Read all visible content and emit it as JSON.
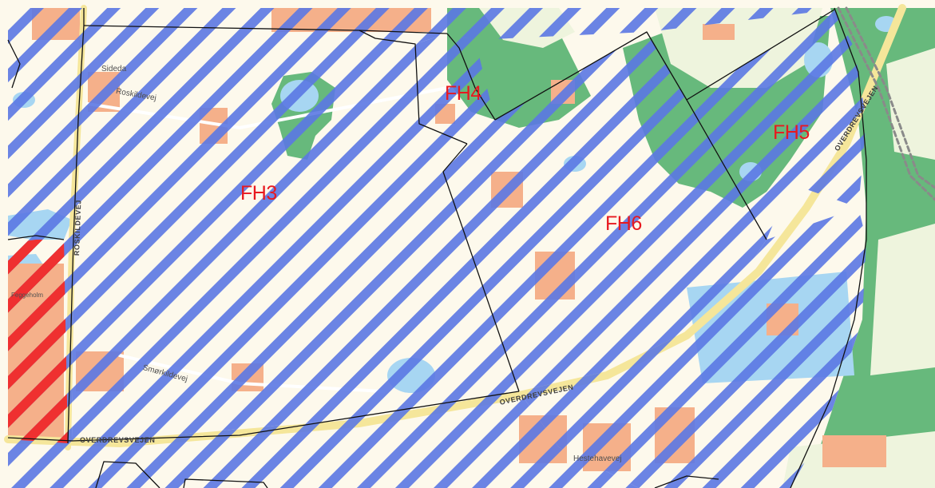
{
  "map": {
    "zones": [
      {
        "id": "FH3",
        "label": "FH3"
      },
      {
        "id": "FH4",
        "label": "FH4"
      },
      {
        "id": "FH5",
        "label": "FH5"
      },
      {
        "id": "FH6",
        "label": "FH6"
      }
    ],
    "road_labels": {
      "roskildevej": "Roskildevej",
      "roskildevej_vertical": "ROSKILDEVEJ",
      "smorkildevej": "Smørkildevej",
      "overdrevsvejen_ne": "OVERDREVSVEJEN",
      "overdrevsvejen_mid": "OVERDREVSVEJEN",
      "overdrevsvejen_sw": "OVERDREVSVEJEN",
      "hestehavevej": "Hestehavevej",
      "feggeholm": "Feggeholm",
      "roskildevej_stub": "Sideda"
    },
    "colors": {
      "background": "#fdf9ec",
      "hatch_blue": "#5b78e4",
      "hatch_red": "#ef3030",
      "forest_green": "#67b97c",
      "water_blue": "#a7d6f2",
      "building_orange": "#f5b08a",
      "road_yellow": "#f5e69a",
      "zone_label_red": "#e8191f",
      "boundary_black": "#111111"
    }
  }
}
